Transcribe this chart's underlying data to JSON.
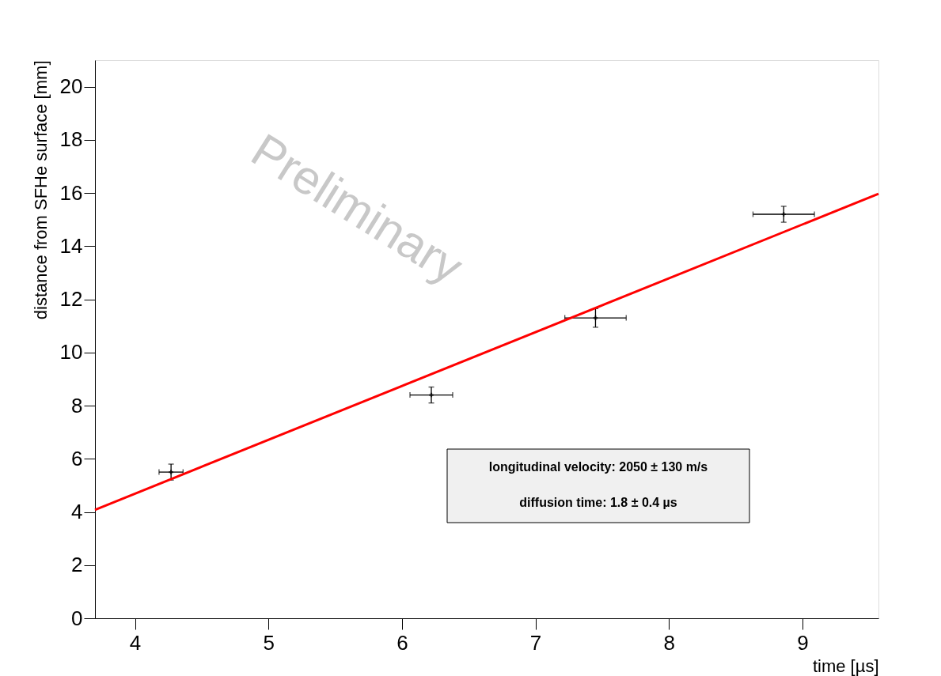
{
  "chart_data": {
    "type": "scatter",
    "xlabel": "time [µs]",
    "ylabel": "distance from SFHe surface [mm]",
    "xlim": [
      3.7,
      9.57
    ],
    "ylim": [
      0,
      21
    ],
    "xticks": [
      4,
      5,
      6,
      7,
      8,
      9
    ],
    "yticks": [
      0,
      2,
      4,
      6,
      8,
      10,
      12,
      14,
      16,
      18,
      20
    ],
    "grid": false,
    "series": [
      {
        "color": "#000000",
        "marker": "cross",
        "x": [
          4.27,
          6.22,
          7.45,
          8.86
        ],
        "values": [
          5.5,
          8.4,
          11.3,
          15.2
        ],
        "errors": [
          0.3,
          0.3,
          0.35,
          0.3
        ],
        "xerrors": [
          0.09,
          0.16,
          0.23,
          0.23
        ]
      },
      {
        "type": "line",
        "color": "#ff0000",
        "line_style": "solid",
        "x": [
          3.7,
          9.57
        ],
        "values": [
          4.08,
          15.97
        ]
      }
    ],
    "annotations": [
      "longitudinal velocity: 2050 ± 130 m/s",
      "diffusion time: 1.8 ± 0.4 µs",
      "Preliminary"
    ]
  }
}
